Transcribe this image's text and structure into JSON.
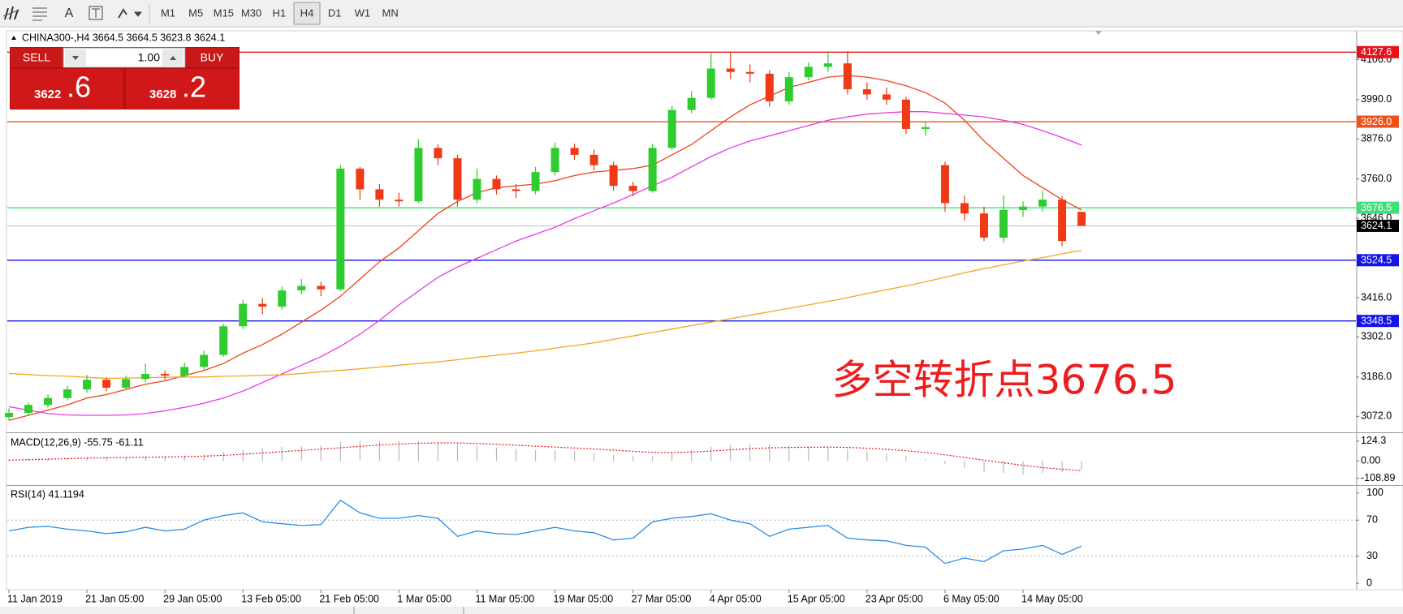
{
  "toolbar": {
    "font_button": "A",
    "timeframes": [
      "M1",
      "M5",
      "M15",
      "M30",
      "H1",
      "H4",
      "D1",
      "W1",
      "MN"
    ],
    "active": "H4"
  },
  "trade_panel": {
    "sell": "SELL",
    "buy": "BUY",
    "lot": "1.00",
    "bid_main": "3622",
    "bid_frac": ".6",
    "ask_main": "3628",
    "ask_frac": ".2"
  },
  "chart_data": [
    {
      "type": "candlestick",
      "title": "CHINA300-,H4  3664.5 3664.5 3623.8 3624.1",
      "categories": [
        "11 Jan 2019",
        null,
        null,
        null,
        "21 Jan 05:00",
        null,
        null,
        null,
        "29 Jan 05:00",
        null,
        null,
        null,
        "13 Feb 05:00",
        null,
        null,
        null,
        "21 Feb 05:00",
        null,
        null,
        null,
        "1 Mar 05:00",
        null,
        null,
        null,
        "11 Mar 05:00",
        null,
        null,
        null,
        "19 Mar 05:00",
        null,
        null,
        null,
        "27 Mar 05:00",
        null,
        null,
        null,
        "4 Apr 05:00",
        null,
        null,
        null,
        "15 Apr 05:00",
        null,
        null,
        null,
        "23 Apr 05:00",
        null,
        null,
        null,
        "6 May 05:00",
        null,
        null,
        null,
        "14 May 05:00",
        null,
        null,
        null
      ],
      "open": [
        3070,
        3082,
        3105,
        3125,
        3150,
        3178,
        3155,
        3180,
        3195,
        3190,
        3215,
        3250,
        3333,
        3398,
        3390,
        3437,
        3450,
        3440,
        3790,
        3730,
        3700,
        3695,
        3850,
        3820,
        3700,
        3760,
        3730,
        3725,
        3780,
        3850,
        3830,
        3800,
        3740,
        3725,
        3850,
        3960,
        3995,
        4080,
        4070,
        4065,
        3985,
        4055,
        4085,
        4095,
        4020,
        4005,
        3990,
        3905,
        3800,
        3690,
        3660,
        3590,
        3670,
        3680,
        3700,
        3664.5
      ],
      "high": [
        3095,
        3112,
        3135,
        3160,
        3192,
        3185,
        3190,
        3225,
        3205,
        3228,
        3262,
        3340,
        3410,
        3415,
        3448,
        3470,
        3462,
        3800,
        3795,
        3745,
        3720,
        3875,
        3860,
        3830,
        3790,
        3770,
        3745,
        3795,
        3866,
        3862,
        3845,
        3810,
        3752,
        3862,
        3972,
        4015,
        4125,
        4125,
        4092,
        4075,
        4070,
        4098,
        4130,
        4130,
        4040,
        4025,
        3998,
        3925,
        3810,
        3712,
        3680,
        3712,
        3695,
        3725,
        3710,
        3664.5
      ],
      "low": [
        3060,
        3075,
        3098,
        3118,
        3140,
        3145,
        3148,
        3170,
        3178,
        3185,
        3208,
        3245,
        3325,
        3368,
        3382,
        3425,
        3420,
        3435,
        3700,
        3680,
        3680,
        3690,
        3800,
        3680,
        3690,
        3715,
        3705,
        3715,
        3770,
        3815,
        3785,
        3725,
        3710,
        3720,
        3845,
        3950,
        3990,
        4050,
        4040,
        3970,
        3975,
        4045,
        4070,
        4005,
        3990,
        3975,
        3890,
        3885,
        3665,
        3640,
        3580,
        3575,
        3650,
        3665,
        3565,
        3623.8
      ],
      "close": [
        3082,
        3105,
        3125,
        3150,
        3178,
        3155,
        3180,
        3195,
        3190,
        3215,
        3250,
        3333,
        3398,
        3390,
        3437,
        3450,
        3440,
        3790,
        3730,
        3700,
        3695,
        3850,
        3820,
        3700,
        3760,
        3730,
        3725,
        3780,
        3850,
        3830,
        3800,
        3740,
        3725,
        3850,
        3960,
        3995,
        4080,
        4070,
        4065,
        3985,
        4055,
        4085,
        4095,
        4020,
        4005,
        3990,
        3905,
        3910,
        3690,
        3660,
        3590,
        3670,
        3680,
        3700,
        3580,
        3624.1
      ],
      "up_color": "#2ecc2e",
      "down_color": "#ee3a16",
      "lines": [
        {
          "color": "#f0401a",
          "values": [
            3060,
            3075,
            3090,
            3105,
            3125,
            3135,
            3150,
            3165,
            3175,
            3190,
            3205,
            3225,
            3255,
            3280,
            3310,
            3345,
            3380,
            3420,
            3470,
            3520,
            3560,
            3610,
            3660,
            3695,
            3720,
            3735,
            3740,
            3745,
            3755,
            3770,
            3780,
            3785,
            3790,
            3800,
            3830,
            3860,
            3900,
            3940,
            3975,
            4000,
            4025,
            4040,
            4055,
            4060,
            4055,
            4045,
            4030,
            4010,
            3980,
            3930,
            3870,
            3820,
            3770,
            3735,
            3700,
            3670
          ]
        },
        {
          "color": "#e53be5",
          "values": [
            3100,
            3090,
            3080,
            3076,
            3075,
            3075,
            3076,
            3080,
            3088,
            3098,
            3110,
            3125,
            3145,
            3170,
            3195,
            3220,
            3245,
            3275,
            3310,
            3350,
            3395,
            3435,
            3475,
            3505,
            3530,
            3555,
            3580,
            3600,
            3620,
            3645,
            3668,
            3690,
            3715,
            3740,
            3765,
            3795,
            3825,
            3850,
            3870,
            3885,
            3900,
            3915,
            3930,
            3940,
            3948,
            3952,
            3955,
            3955,
            3950,
            3945,
            3940,
            3930,
            3918,
            3900,
            3880,
            3858
          ]
        },
        {
          "color": "#f5a623",
          "values": [
            3196,
            3193,
            3190,
            3188,
            3185,
            3182,
            3183,
            3184,
            3185,
            3186,
            3186,
            3188,
            3189,
            3191,
            3192,
            3196,
            3201,
            3205,
            3210,
            3215,
            3220,
            3225,
            3230,
            3236,
            3243,
            3249,
            3255,
            3262,
            3270,
            3277,
            3285,
            3295,
            3305,
            3315,
            3325,
            3335,
            3345,
            3355,
            3365,
            3375,
            3385,
            3395,
            3405,
            3416,
            3428,
            3439,
            3450,
            3462,
            3475,
            3488,
            3500,
            3511,
            3522,
            3532,
            3543,
            3553
          ]
        }
      ],
      "levels": [
        {
          "value": 4127.6,
          "label": "4127.6",
          "color": "#e8101a"
        },
        {
          "value": 3926.0,
          "label": "3926.0",
          "color": "#f0501a"
        },
        {
          "value": 3676.5,
          "label": "3676.5",
          "color": "#3ee07a"
        },
        {
          "value": 3524.5,
          "label": "3524.5",
          "color": "#1414e6"
        },
        {
          "value": 3348.5,
          "label": "3348.5",
          "color": "#1414e6"
        }
      ],
      "last_price": {
        "value": 3624.1,
        "label": "3624.1"
      },
      "ylim": [
        3028,
        4187
      ],
      "yticks": [
        {
          "value": 3072,
          "label": "3072.0"
        },
        {
          "value": 3186,
          "label": "3186.0"
        },
        {
          "value": 3302,
          "label": "3302.0"
        },
        {
          "value": 3416,
          "label": "3416.0"
        },
        {
          "value": 3646,
          "label": "3646.0"
        },
        {
          "value": 3760,
          "label": "3760.0"
        },
        {
          "value": 3876,
          "label": "3876.0"
        },
        {
          "value": 3990,
          "label": "3990.0"
        },
        {
          "value": 4106,
          "label": "4106.0"
        }
      ],
      "annotation": "多空转折点3676.5"
    },
    {
      "type": "macd",
      "title": "MACD(12,26,9) -55.75 -61.11",
      "histogram": [
        10,
        15,
        18,
        22,
        25,
        25,
        27,
        30,
        30,
        35,
        42,
        55,
        70,
        80,
        88,
        95,
        100,
        120,
        125,
        124,
        124,
        124,
        118,
        105,
        95,
        85,
        75,
        70,
        65,
        60,
        50,
        40,
        30,
        32,
        50,
        70,
        90,
        100,
        105,
        100,
        95,
        90,
        88,
        75,
        60,
        45,
        30,
        10,
        -20,
        -45,
        -70,
        -80,
        -85,
        -75,
        -70,
        -55.75
      ],
      "signal": [
        5,
        8,
        11,
        14,
        17,
        19,
        21,
        23,
        25,
        27,
        30,
        35,
        42,
        50,
        58,
        66,
        74,
        83,
        92,
        100,
        106,
        111,
        114,
        113,
        110,
        105,
        99,
        93,
        87,
        81,
        75,
        68,
        60,
        54,
        53,
        56,
        62,
        70,
        77,
        82,
        85,
        86,
        87,
        85,
        80,
        73,
        64,
        53,
        38,
        22,
        5,
        -12,
        -28,
        -42,
        -53,
        -61.11
      ],
      "hist_color": "#b8b8b8",
      "signal_color": "#e8101a",
      "ylim": [
        -147,
        170
      ],
      "yticks": [
        124.3,
        {
          "value": 0,
          "label": "0.00"
        },
        -108.89
      ]
    },
    {
      "type": "line",
      "title": "RSI(14) 41.1194",
      "values": [
        58,
        62,
        63,
        60,
        58,
        55,
        57,
        62,
        58,
        60,
        70,
        75,
        78,
        68,
        66,
        64,
        65,
        92,
        78,
        72,
        72,
        75,
        72,
        52,
        58,
        55,
        54,
        58,
        62,
        58,
        56,
        48,
        50,
        68,
        72,
        74,
        77,
        70,
        66,
        52,
        60,
        62,
        64,
        50,
        48,
        47,
        42,
        40,
        22,
        28,
        24,
        36,
        38,
        42,
        32,
        41.1194
      ],
      "color": "#2b8be6",
      "levels": [
        30,
        70
      ],
      "ylim": [
        -7,
        107
      ],
      "yticks": [
        0,
        30,
        70,
        100
      ]
    }
  ]
}
